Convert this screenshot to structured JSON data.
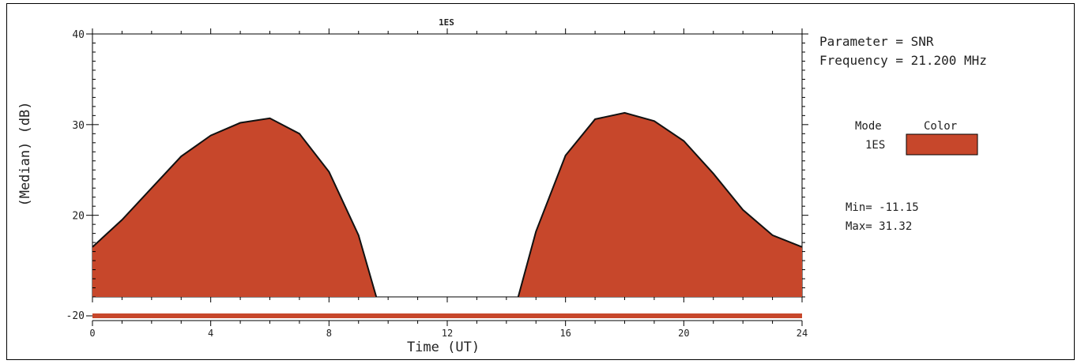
{
  "chart_data": {
    "type": "area",
    "title": "1ES",
    "xlabel": "Time (UT)",
    "ylabel": "(Median) (dB)",
    "xlim": [
      0,
      24
    ],
    "ylim_upper": [
      11,
      40
    ],
    "ylim_lower_value": -20,
    "x_ticks": [
      "0",
      "4",
      "8",
      "12",
      "16",
      "20",
      "24"
    ],
    "y_ticks": [
      "20",
      "30",
      "40"
    ],
    "y_tick_lower": "-20",
    "grid": false,
    "series": [
      {
        "name": "1ES",
        "color": "#c7472b",
        "x": [
          0,
          1,
          2,
          3,
          4,
          5,
          6,
          7,
          8,
          9,
          9.6,
          14.4,
          15,
          16,
          17,
          18,
          19,
          20,
          21,
          22,
          23,
          24
        ],
        "y": [
          16.5,
          19.5,
          23,
          26.5,
          28.8,
          30.2,
          30.7,
          29.0,
          24.8,
          17.8,
          11,
          11,
          18.2,
          26.6,
          30.6,
          31.3,
          30.4,
          28.2,
          24.6,
          20.6,
          17.8,
          16.5
        ]
      }
    ]
  },
  "legend": {
    "parameter_line": "Parameter = SNR",
    "frequency_line": "Frequency = 21.200 MHz",
    "mode_header": "Mode",
    "color_header": "Color",
    "mode_entry": "1ES",
    "swatch_color": "#c7472b",
    "min_line": "Min= -11.15",
    "max_line": "Max=  31.32"
  }
}
